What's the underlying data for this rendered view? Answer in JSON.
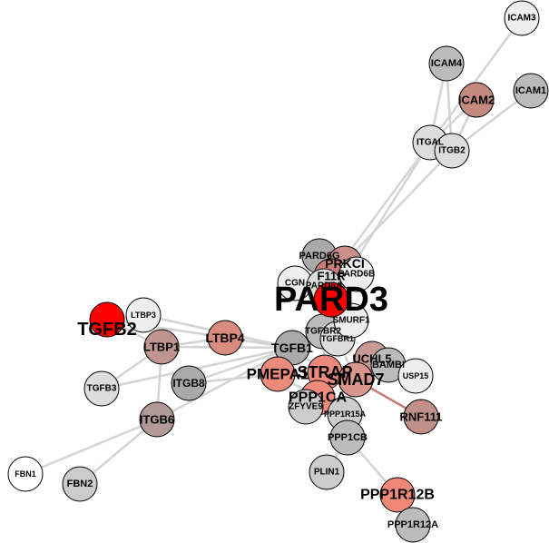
{
  "nodes": [
    {
      "label": "ICAM3"
    },
    {
      "label": "ICAM4"
    },
    {
      "label": "ICAM1"
    },
    {
      "label": "ICAM2"
    },
    {
      "label": "ITGAL"
    },
    {
      "label": "ITGB2"
    },
    {
      "label": "PARD6G"
    },
    {
      "label": "PRKCI"
    },
    {
      "label": "F11R"
    },
    {
      "label": "PARD6B"
    },
    {
      "label": "CGN"
    },
    {
      "label": "PARD6A"
    },
    {
      "label": "TGFBR2"
    },
    {
      "label": "TGFBR1"
    },
    {
      "label": "SMURF1"
    },
    {
      "label": "TGFB1"
    },
    {
      "label": "LTBP4"
    },
    {
      "label": "LTBP1"
    },
    {
      "label": "LTBP3"
    },
    {
      "label": "TGFB2"
    },
    {
      "label": "TGFB3"
    },
    {
      "label": "ITGB8"
    },
    {
      "label": "ITGB6"
    },
    {
      "label": "FBN1"
    },
    {
      "label": "FBN2"
    },
    {
      "label": "UCHL5"
    },
    {
      "label": "BAMBI"
    },
    {
      "label": "USP15"
    },
    {
      "label": "PMEPA1"
    },
    {
      "label": "STRAP"
    },
    {
      "label": "SMAD7"
    },
    {
      "label": "PPP1CA"
    },
    {
      "label": "ZFYVE9"
    },
    {
      "label": "PPP1R15A"
    },
    {
      "label": "RNF111"
    },
    {
      "label": "PPP1CB"
    },
    {
      "label": "PLIN1"
    },
    {
      "label": "PPP1R12B"
    },
    {
      "label": "PPP1R12A"
    },
    {
      "label": "PARD3"
    }
  ]
}
